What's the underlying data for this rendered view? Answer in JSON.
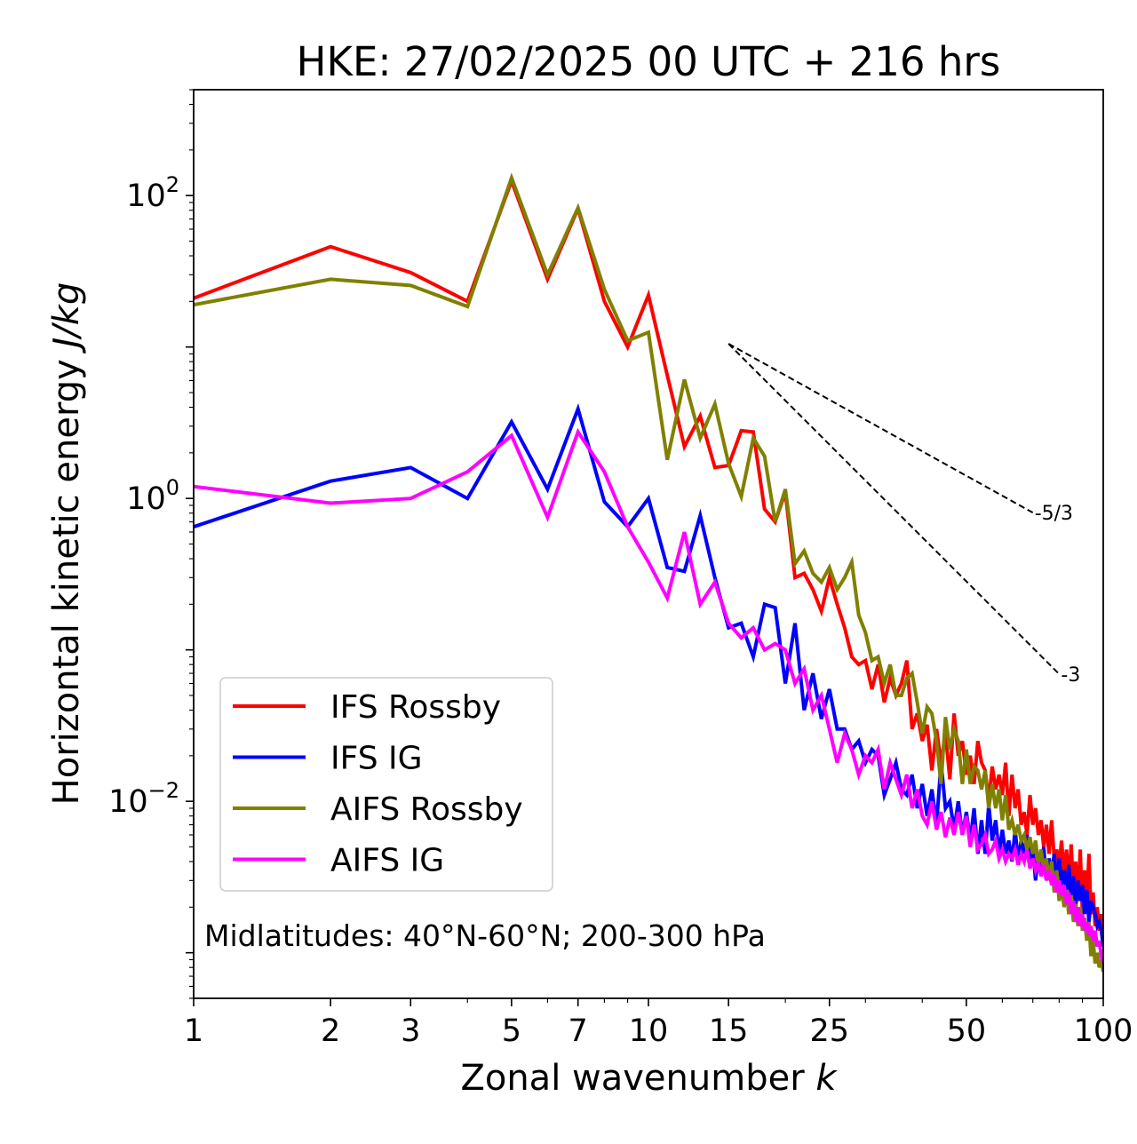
{
  "chart_data": {
    "type": "line",
    "title": "HKE: 27/02/2025 00 UTC + 216 hrs",
    "xlabel": "Zonal wavenumber ",
    "xlabel_var": "k",
    "ylabel": "Horizontal kinetic energy ",
    "ylabel_unit": "J/kg",
    "x_scale": "log",
    "y_scale": "log",
    "xlim": [
      1,
      100
    ],
    "ylim": [
      0.0005,
      500
    ],
    "x_ticks": [
      1,
      2,
      3,
      5,
      7,
      10,
      15,
      25,
      50,
      100
    ],
    "x_tick_labels": [
      "1",
      "2",
      "3",
      "5",
      "7",
      "10",
      "15",
      "25",
      "50",
      "100"
    ],
    "y_ticks": [
      {
        "value": 100,
        "base": "10",
        "exp": "2"
      },
      {
        "value": 1,
        "base": "10",
        "exp": "0"
      },
      {
        "value": 0.01,
        "base": "10",
        "exp": "−2"
      }
    ],
    "annotation": "Midlatitudes: 40°N-60°N; 200-300 hPa",
    "legend_position": "lower-left",
    "reference_lines": [
      {
        "label": "-5/3",
        "slope": -1.666667,
        "x": [
          15,
          70
        ],
        "y0": 10.5
      },
      {
        "label": "-3",
        "slope": -3,
        "x": [
          15,
          80
        ],
        "y0": 10.5
      }
    ],
    "series": [
      {
        "name": "IFS Rossby",
        "color": "#ff0000",
        "x": [
          1,
          2,
          3,
          4,
          5,
          6,
          7,
          8,
          9,
          10,
          11,
          12,
          13,
          14,
          15,
          16,
          17,
          18,
          19,
          20,
          21,
          22,
          23,
          24,
          25,
          26,
          27,
          28,
          29,
          30,
          31,
          32,
          33,
          34,
          35,
          36,
          37,
          38,
          39,
          40,
          41,
          42,
          43,
          44,
          45,
          46,
          47,
          48,
          49,
          50,
          51,
          52,
          53,
          54,
          55,
          56,
          57,
          58,
          59,
          60,
          61,
          62,
          63,
          64,
          65,
          66,
          67,
          68,
          69,
          70,
          71,
          72,
          73,
          74,
          75,
          76,
          77,
          78,
          79,
          80,
          81,
          82,
          83,
          84,
          85,
          86,
          87,
          88,
          89,
          90,
          91,
          92,
          93,
          94,
          95,
          96,
          97,
          98,
          99,
          100
        ],
        "y": [
          21,
          46,
          31,
          20,
          125,
          28,
          82,
          20,
          10,
          22,
          6.5,
          2.2,
          3.5,
          1.6,
          1.65,
          2.8,
          2.75,
          0.85,
          0.7,
          1.1,
          0.3,
          0.32,
          0.25,
          0.18,
          0.3,
          0.2,
          0.14,
          0.09,
          0.08,
          0.085,
          0.055,
          0.08,
          0.045,
          0.065,
          0.05,
          0.06,
          0.085,
          0.03,
          0.038,
          0.025,
          0.032,
          0.016,
          0.03,
          0.018,
          0.028,
          0.014,
          0.038,
          0.02,
          0.025,
          0.015,
          0.02,
          0.013,
          0.025,
          0.018,
          0.016,
          0.01,
          0.017,
          0.012,
          0.015,
          0.011,
          0.018,
          0.008,
          0.015,
          0.009,
          0.012,
          0.007,
          0.0085,
          0.006,
          0.011,
          0.007,
          0.009,
          0.006,
          0.0075,
          0.005,
          0.007,
          0.0045,
          0.0075,
          0.0042,
          0.0048,
          0.0038,
          0.0055,
          0.0032,
          0.0048,
          0.0028,
          0.0052,
          0.0025,
          0.004,
          0.0022,
          0.0048,
          0.0018,
          0.0035,
          0.002,
          0.0045,
          0.0018,
          0.0025,
          0.0015,
          0.002,
          0.0014,
          0.0018,
          0.0014
        ]
      },
      {
        "name": "IFS IG",
        "color": "#0000ff",
        "x": [
          1,
          2,
          3,
          4,
          5,
          6,
          7,
          8,
          9,
          10,
          11,
          12,
          13,
          14,
          15,
          16,
          17,
          18,
          19,
          20,
          21,
          22,
          23,
          24,
          25,
          26,
          27,
          28,
          29,
          30,
          31,
          32,
          33,
          34,
          35,
          36,
          37,
          38,
          39,
          40,
          41,
          42,
          43,
          44,
          45,
          46,
          47,
          48,
          49,
          50,
          51,
          52,
          53,
          54,
          55,
          56,
          57,
          58,
          59,
          60,
          61,
          62,
          63,
          64,
          65,
          66,
          67,
          68,
          69,
          70,
          71,
          72,
          73,
          74,
          75,
          76,
          77,
          78,
          79,
          80,
          81,
          82,
          83,
          84,
          85,
          86,
          87,
          88,
          89,
          90,
          91,
          92,
          93,
          94,
          95,
          96,
          97,
          98,
          99,
          100
        ],
        "y": [
          0.65,
          1.3,
          1.6,
          1.0,
          3.2,
          1.15,
          3.9,
          0.95,
          0.65,
          1.0,
          0.35,
          0.33,
          0.77,
          0.3,
          0.14,
          0.15,
          0.09,
          0.2,
          0.19,
          0.06,
          0.15,
          0.04,
          0.07,
          0.035,
          0.055,
          0.03,
          0.03,
          0.022,
          0.025,
          0.018,
          0.022,
          0.02,
          0.011,
          0.014,
          0.018,
          0.012,
          0.011,
          0.015,
          0.009,
          0.013,
          0.008,
          0.012,
          0.007,
          0.018,
          0.009,
          0.01,
          0.0065,
          0.01,
          0.006,
          0.0085,
          0.0055,
          0.009,
          0.0045,
          0.0075,
          0.0045,
          0.0095,
          0.0055,
          0.0075,
          0.0045,
          0.0065,
          0.0045,
          0.0055,
          0.004,
          0.0065,
          0.004,
          0.0055,
          0.0045,
          0.006,
          0.004,
          0.005,
          0.003,
          0.0045,
          0.0035,
          0.005,
          0.003,
          0.0042,
          0.0032,
          0.0045,
          0.003,
          0.0042,
          0.0028,
          0.0035,
          0.0025,
          0.0038,
          0.0022,
          0.0032,
          0.002,
          0.003,
          0.0022,
          0.0028,
          0.0018,
          0.0026,
          0.0016,
          0.0022,
          0.002,
          0.0018,
          0.0015,
          0.0016,
          0.0014,
          0.0011
        ]
      },
      {
        "name": "AIFS Rossby",
        "color": "#808000",
        "x": [
          1,
          2,
          3,
          4,
          5,
          6,
          7,
          8,
          9,
          10,
          11,
          12,
          13,
          14,
          15,
          16,
          17,
          18,
          19,
          20,
          21,
          22,
          23,
          24,
          25,
          26,
          27,
          28,
          29,
          30,
          31,
          32,
          33,
          34,
          35,
          36,
          37,
          38,
          39,
          40,
          41,
          42,
          43,
          44,
          45,
          46,
          47,
          48,
          49,
          50,
          51,
          52,
          53,
          54,
          55,
          56,
          57,
          58,
          59,
          60,
          61,
          62,
          63,
          64,
          65,
          66,
          67,
          68,
          69,
          70,
          71,
          72,
          73,
          74,
          75,
          76,
          77,
          78,
          79,
          80,
          81,
          82,
          83,
          84,
          85,
          86,
          87,
          88,
          89,
          90,
          91,
          92,
          93,
          94,
          95,
          96,
          97,
          98,
          99,
          100
        ],
        "y": [
          19,
          28,
          25.5,
          18.5,
          131,
          30,
          83,
          24,
          11,
          12.5,
          1.8,
          6.1,
          2.5,
          4.2,
          1.7,
          1.03,
          2.5,
          1.9,
          0.7,
          1.15,
          0.37,
          0.45,
          0.32,
          0.28,
          0.35,
          0.25,
          0.3,
          0.38,
          0.17,
          0.13,
          0.085,
          0.09,
          0.06,
          0.08,
          0.05,
          0.05,
          0.065,
          0.07,
          0.045,
          0.028,
          0.042,
          0.038,
          0.025,
          0.013,
          0.036,
          0.022,
          0.03,
          0.025,
          0.013,
          0.022,
          0.013,
          0.017,
          0.016,
          0.012,
          0.016,
          0.009,
          0.013,
          0.009,
          0.012,
          0.0075,
          0.011,
          0.0065,
          0.0075,
          0.006,
          0.007,
          0.0055,
          0.006,
          0.0048,
          0.0058,
          0.0045,
          0.0055,
          0.0038,
          0.0048,
          0.0035,
          0.0042,
          0.003,
          0.004,
          0.0025,
          0.0035,
          0.0022,
          0.0028,
          0.002,
          0.0026,
          0.0018,
          0.0024,
          0.0016,
          0.0021,
          0.0015,
          0.002,
          0.0014,
          0.0017,
          0.0012,
          0.0016,
          0.00095,
          0.0012,
          0.00085,
          0.001,
          0.0008,
          0.0009,
          0.00075
        ]
      },
      {
        "name": "AIFS IG",
        "color": "#ff00ff",
        "x": [
          1,
          2,
          3,
          4,
          5,
          6,
          7,
          8,
          9,
          10,
          11,
          12,
          13,
          14,
          15,
          16,
          17,
          18,
          19,
          20,
          21,
          22,
          23,
          24,
          25,
          26,
          27,
          28,
          29,
          30,
          31,
          32,
          33,
          34,
          35,
          36,
          37,
          38,
          39,
          40,
          41,
          42,
          43,
          44,
          45,
          46,
          47,
          48,
          49,
          50,
          51,
          52,
          53,
          54,
          55,
          56,
          57,
          58,
          59,
          60,
          61,
          62,
          63,
          64,
          65,
          66,
          67,
          68,
          69,
          70,
          71,
          72,
          73,
          74,
          75,
          76,
          77,
          78,
          79,
          80,
          81,
          82,
          83,
          84,
          85,
          86,
          87,
          88,
          89,
          90,
          91,
          92,
          93,
          94,
          95,
          96,
          97,
          98,
          99,
          100
        ],
        "y": [
          1.2,
          0.93,
          1.0,
          1.5,
          2.6,
          0.75,
          2.75,
          1.5,
          0.65,
          0.38,
          0.22,
          0.6,
          0.2,
          0.28,
          0.15,
          0.12,
          0.14,
          0.1,
          0.11,
          0.1,
          0.06,
          0.075,
          0.04,
          0.05,
          0.03,
          0.018,
          0.028,
          0.022,
          0.015,
          0.02,
          0.018,
          0.022,
          0.012,
          0.018,
          0.014,
          0.011,
          0.015,
          0.009,
          0.012,
          0.008,
          0.007,
          0.01,
          0.0065,
          0.0085,
          0.0058,
          0.0078,
          0.006,
          0.0085,
          0.006,
          0.008,
          0.005,
          0.007,
          0.0048,
          0.0052,
          0.006,
          0.0045,
          0.0048,
          0.0055,
          0.0042,
          0.0048,
          0.004,
          0.0045,
          0.0042,
          0.0048,
          0.0038,
          0.0045,
          0.004,
          0.0048,
          0.0036,
          0.0042,
          0.0035,
          0.004,
          0.0032,
          0.0038,
          0.003,
          0.0035,
          0.0028,
          0.0033,
          0.0025,
          0.003,
          0.0024,
          0.0028,
          0.0021,
          0.0025,
          0.0018,
          0.0022,
          0.0016,
          0.002,
          0.0015,
          0.0018,
          0.0014,
          0.0016,
          0.0013,
          0.0015,
          0.0012,
          0.0014,
          0.0011,
          0.0012,
          0.00095,
          0.00085
        ]
      }
    ]
  }
}
